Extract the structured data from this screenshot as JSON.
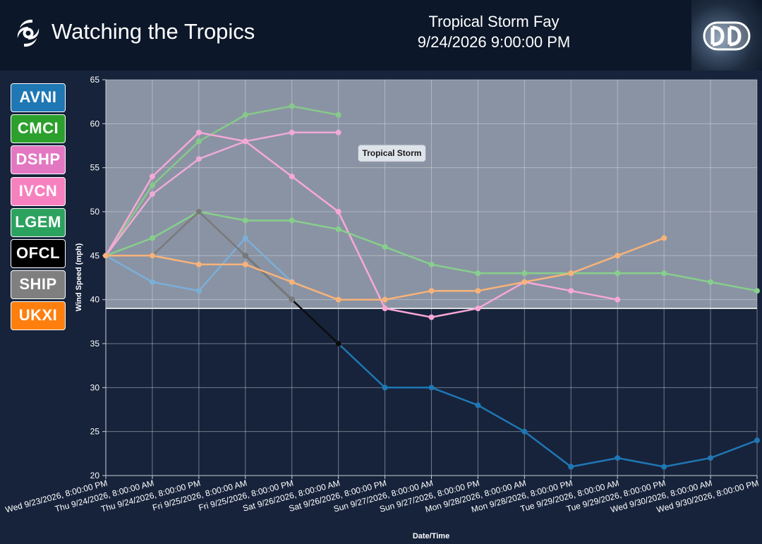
{
  "header": {
    "app_title": "Watching the Tropics",
    "storm_name": "Tropical Storm Fay",
    "storm_datetime": "9/24/2026 9:00:00 PM",
    "app_icon": "hurricane-icon",
    "logo": "dd-logo"
  },
  "legend": [
    {
      "label": "AVNI",
      "color": "#1f77b4"
    },
    {
      "label": "CMCI",
      "color": "#2ca02c"
    },
    {
      "label": "DSHP",
      "color": "#e377c2"
    },
    {
      "label": "IVCN",
      "color": "#f781bf"
    },
    {
      "label": "LGEM",
      "color": "#2ca25f"
    },
    {
      "label": "OFCL",
      "color": "#000000"
    },
    {
      "label": "SHIP",
      "color": "#7f7f7f"
    },
    {
      "label": "UKXI",
      "color": "#ff7f0e"
    }
  ],
  "chart_data": {
    "type": "line",
    "xlabel": "Date/Time",
    "ylabel": "Wind Speed (mph)",
    "ylim": [
      20,
      65
    ],
    "yticks": [
      20,
      25,
      30,
      35,
      40,
      45,
      50,
      55,
      60,
      65
    ],
    "grid": true,
    "categories": [
      "Wed 9/23/2026, 8:00:00 PM",
      "Thu 9/24/2026, 8:00:00 AM",
      "Thu 9/24/2026, 8:00:00 PM",
      "Fri 9/25/2026, 8:00:00 AM",
      "Fri 9/25/2026, 8:00:00 PM",
      "Sat 9/26/2026, 8:00:00 AM",
      "Sat 9/26/2026, 8:00:00 PM",
      "Sun 9/27/2026, 8:00:00 AM",
      "Sun 9/27/2026, 8:00:00 PM",
      "Mon 9/28/2026, 8:00:00 AM",
      "Mon 9/28/2026, 8:00:00 PM",
      "Tue 9/29/2026, 8:00:00 AM",
      "Tue 9/29/2026, 8:00:00 PM",
      "Wed 9/30/2026, 8:00:00 AM",
      "Wed 9/30/2026, 8:00:00 PM"
    ],
    "band": {
      "label": "Tropical Storm",
      "from": 39,
      "to": 65,
      "color": "#8a93a3"
    },
    "series": [
      {
        "name": "AVNI",
        "color": "#1f77b4",
        "values": [
          null,
          null,
          null,
          null,
          null,
          35,
          30,
          30,
          28,
          25,
          21,
          22,
          21,
          22,
          24
        ]
      },
      {
        "name": "AVNI",
        "color": "#7bafd8",
        "values": [
          45,
          42,
          41,
          47,
          42,
          null,
          null,
          null,
          null,
          null,
          null,
          null,
          null,
          null,
          null
        ]
      },
      {
        "name": "CMCI",
        "color": "#86c98a",
        "values": [
          45,
          53,
          58,
          61,
          62,
          61,
          null,
          null,
          null,
          null,
          null,
          null,
          null,
          null,
          null
        ]
      },
      {
        "name": "DSHP",
        "color": "#eeaad8",
        "values": [
          45,
          52,
          56,
          58,
          59,
          59,
          null,
          null,
          null,
          null,
          null,
          null,
          null,
          null,
          null
        ]
      },
      {
        "name": "IVCN",
        "color": "#f7a8d6",
        "values": [
          45,
          54,
          59,
          58,
          54,
          50,
          39,
          38,
          39,
          42,
          41,
          40,
          null,
          null,
          null
        ]
      },
      {
        "name": "LGEM",
        "color": "#86cf8c",
        "values": [
          45,
          47,
          50,
          49,
          49,
          48,
          46,
          44,
          43,
          43,
          43,
          43,
          43,
          42,
          41
        ]
      },
      {
        "name": "OFCL",
        "color": "#0c0c0c",
        "values": [
          45,
          45,
          null,
          45,
          40,
          35,
          null,
          null,
          null,
          null,
          null,
          null,
          null,
          null,
          null
        ]
      },
      {
        "name": "SHIP",
        "color": "#7a7a7a",
        "values": [
          45,
          45,
          50,
          45,
          40,
          null,
          null,
          null,
          null,
          null,
          null,
          null,
          null,
          null,
          null
        ]
      },
      {
        "name": "UKXI",
        "color": "#f7b37a",
        "values": [
          45,
          45,
          44,
          44,
          42,
          40,
          40,
          41,
          41,
          42,
          43,
          45,
          47,
          null,
          null
        ]
      }
    ]
  }
}
